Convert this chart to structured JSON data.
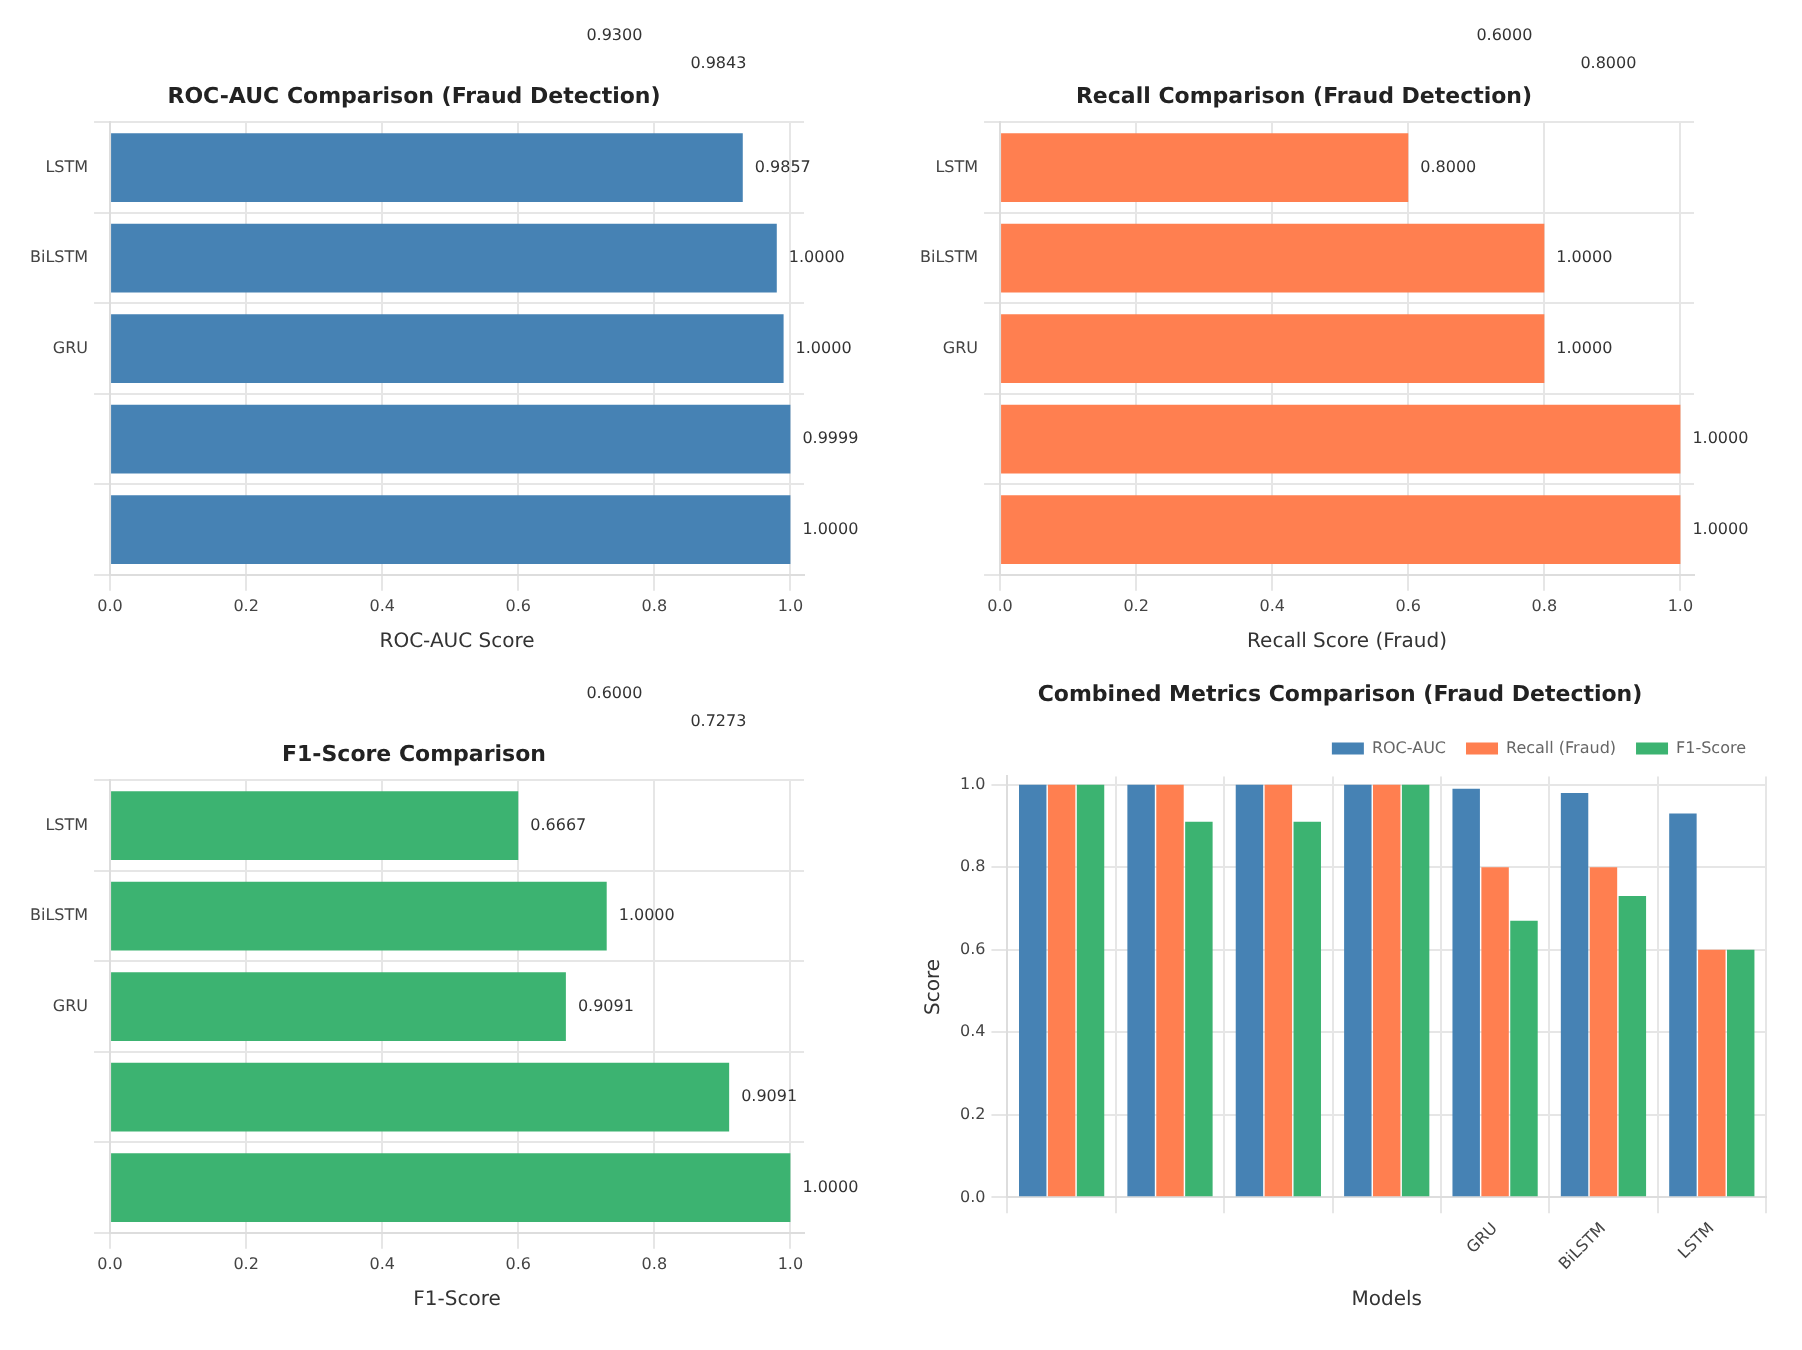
{
  "chart_data": [
    {
      "type": "bar",
      "orientation": "horizontal",
      "title": "ROC-AUC Comparison (Fraud Detection)",
      "xlabel": "ROC-AUC Score",
      "categories": [
        "LSTM",
        "BiLSTM",
        "GRU",
        null,
        null
      ],
      "values": [
        0.93,
        0.98,
        0.99,
        1.0,
        1.0
      ],
      "color": "#4682b4",
      "annotations": [
        "0.9300",
        "0.9843",
        "0.9857",
        "1.0000",
        "1.0000",
        "0.9999",
        "1.0000"
      ],
      "xlim": [
        0,
        1.02
      ],
      "xticks": [
        {
          "value": 0,
          "label": "0.0"
        },
        {
          "value": 0.2,
          "label": "0.2"
        },
        {
          "value": 0.4,
          "label": "0.4"
        },
        {
          "value": 0.6,
          "label": "0.6"
        },
        {
          "value": 0.8,
          "label": "0.8"
        },
        {
          "value": 1,
          "label": "1.0"
        }
      ],
      "grid": true
    },
    {
      "type": "bar",
      "orientation": "horizontal",
      "title": "Recall Comparison (Fraud Detection)",
      "xlabel": "Recall Score (Fraud)",
      "categories": [
        "LSTM",
        "BiLSTM",
        "GRU",
        null,
        null
      ],
      "values": [
        0.6,
        0.8,
        0.8,
        1.0,
        1.0
      ],
      "color": "#ff7f50",
      "annotations": [
        "0.6000",
        "0.8000",
        "0.8000",
        "1.0000",
        "1.0000",
        "1.0000",
        "1.0000"
      ],
      "xlim": [
        0,
        1.02
      ],
      "xticks": [
        {
          "value": 0,
          "label": "0.0"
        },
        {
          "value": 0.2,
          "label": "0.2"
        },
        {
          "value": 0.4,
          "label": "0.4"
        },
        {
          "value": 0.6,
          "label": "0.6"
        },
        {
          "value": 0.8,
          "label": "0.8"
        },
        {
          "value": 1,
          "label": "1.0"
        }
      ],
      "grid": true
    },
    {
      "type": "bar",
      "orientation": "horizontal",
      "title": "F1-Score Comparison",
      "xlabel": "F1-Score",
      "categories": [
        "LSTM",
        "BiLSTM",
        "GRU",
        null,
        null
      ],
      "values": [
        0.6,
        0.73,
        0.67,
        0.91,
        1.0
      ],
      "color": "#3cb371",
      "annotations": [
        "0.6000",
        "0.7273",
        "0.6667",
        "1.0000",
        "0.9091",
        "0.9091",
        "1.0000"
      ],
      "xlim": [
        0,
        1.02
      ],
      "xticks": [
        {
          "value": 0,
          "label": "0.0"
        },
        {
          "value": 0.2,
          "label": "0.2"
        },
        {
          "value": 0.4,
          "label": "0.4"
        },
        {
          "value": 0.6,
          "label": "0.6"
        },
        {
          "value": 0.8,
          "label": "0.8"
        },
        {
          "value": 1,
          "label": "1.0"
        }
      ],
      "grid": true
    },
    {
      "type": "bar",
      "title": "Combined Metrics Comparison (Fraud Detection)",
      "xlabel": "Models",
      "ylabel": "Score",
      "categories": [
        null,
        null,
        null,
        null,
        "GRU",
        "BiLSTM",
        "LSTM"
      ],
      "series": [
        {
          "name": "ROC-AUC",
          "color": "#4682b4",
          "values": [
            1.0,
            1.0,
            1.0,
            1.0,
            0.99,
            0.98,
            0.93
          ]
        },
        {
          "name": "Recall (Fraud)",
          "color": "#ff7f50",
          "values": [
            1.0,
            1.0,
            1.0,
            1.0,
            0.8,
            0.8,
            0.6
          ]
        },
        {
          "name": "F1-Score",
          "color": "#3cb371",
          "values": [
            1.0,
            0.91,
            0.91,
            1.0,
            0.67,
            0.73,
            0.6
          ]
        }
      ],
      "ylim": [
        0,
        1.02
      ],
      "yticks": [
        {
          "value": 0,
          "label": "0.0"
        },
        {
          "value": 0.2,
          "label": "0.2"
        },
        {
          "value": 0.4,
          "label": "0.4"
        },
        {
          "value": 0.6,
          "label": "0.6"
        },
        {
          "value": 0.8,
          "label": "0.8"
        },
        {
          "value": 1,
          "label": "1.0"
        }
      ],
      "grid": true,
      "legend": "top right"
    }
  ]
}
